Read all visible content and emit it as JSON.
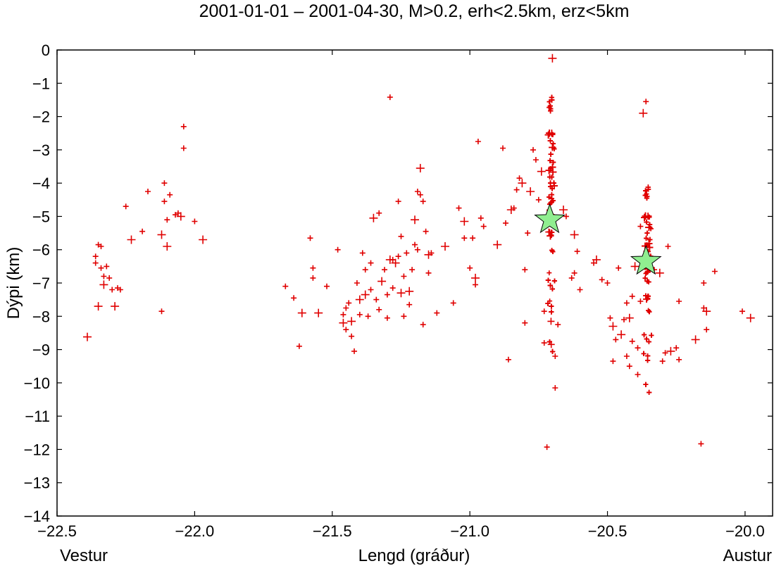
{
  "chart_data": {
    "type": "scatter",
    "title": "2001-01-01 – 2001-04-30, M>0.2, erh<2.5km, erz<5km",
    "xlabel": "Lengd (gráður)",
    "ylabel": "Dýpi (km)",
    "x_left_label": "Vestur",
    "x_right_label": "Austur",
    "xlim": [
      -22.5,
      -19.9
    ],
    "ylim": [
      -14,
      0
    ],
    "xticks": [
      -22.5,
      -22.0,
      -21.5,
      -21.0,
      -20.5,
      -20.0
    ],
    "xtick_labels": [
      "−22.5",
      "−22.0",
      "−21.5",
      "−21.0",
      "−20.5",
      "−20.0"
    ],
    "yticks": [
      0,
      -1,
      -2,
      -3,
      -4,
      -5,
      -6,
      -7,
      -8,
      -9,
      -10,
      -11,
      -12,
      -13,
      -14
    ],
    "ytick_labels": [
      "0",
      "−1",
      "−2",
      "−3",
      "−4",
      "−5",
      "−6",
      "−7",
      "−8",
      "−9",
      "−10",
      "−11",
      "−12",
      "−13",
      "−14"
    ],
    "grid": false,
    "colors": {
      "earthquake": "#e00000",
      "star": "#90ee90"
    },
    "series": [
      {
        "marker": "plus",
        "points": [
          [
            -22.39,
            -8.62
          ],
          [
            -22.36,
            -6.2
          ],
          [
            -22.36,
            -6.4
          ],
          [
            -22.35,
            -5.85
          ],
          [
            -22.35,
            -7.7
          ],
          [
            -22.34,
            -5.9
          ],
          [
            -22.34,
            -6.55
          ],
          [
            -22.33,
            -6.8
          ],
          [
            -22.33,
            -7.05
          ],
          [
            -22.32,
            -6.5
          ],
          [
            -22.31,
            -6.85
          ],
          [
            -22.3,
            -7.2
          ],
          [
            -22.29,
            -7.7
          ],
          [
            -22.28,
            -7.15
          ],
          [
            -22.27,
            -7.2
          ],
          [
            -22.25,
            -4.7
          ],
          [
            -22.23,
            -5.7
          ],
          [
            -22.19,
            -5.45
          ],
          [
            -22.17,
            -4.25
          ],
          [
            -22.12,
            -7.85
          ],
          [
            -22.12,
            -5.55
          ],
          [
            -22.11,
            -4.55
          ],
          [
            -22.11,
            -4.0
          ],
          [
            -22.1,
            -5.1
          ],
          [
            -22.1,
            -5.9
          ],
          [
            -22.09,
            -4.35
          ],
          [
            -22.07,
            -4.95
          ],
          [
            -22.06,
            -4.9
          ],
          [
            -22.05,
            -5.0
          ],
          [
            -22.04,
            -2.95
          ],
          [
            -22.04,
            -2.3
          ],
          [
            -22.0,
            -5.15
          ],
          [
            -21.97,
            -5.7
          ],
          [
            -21.67,
            -7.1
          ],
          [
            -21.64,
            -7.45
          ],
          [
            -21.62,
            -8.9
          ],
          [
            -21.61,
            -7.9
          ],
          [
            -21.58,
            -5.65
          ],
          [
            -21.57,
            -6.55
          ],
          [
            -21.57,
            -6.85
          ],
          [
            -21.55,
            -7.9
          ],
          [
            -21.52,
            -7.1
          ],
          [
            -21.48,
            -6.0
          ],
          [
            -21.46,
            -7.95
          ],
          [
            -21.46,
            -8.2
          ],
          [
            -21.45,
            -7.75
          ],
          [
            -21.45,
            -8.4
          ],
          [
            -21.44,
            -7.6
          ],
          [
            -21.43,
            -8.15
          ],
          [
            -21.43,
            -8.6
          ],
          [
            -21.42,
            -9.05
          ],
          [
            -21.41,
            -7.0
          ],
          [
            -21.4,
            -7.5
          ],
          [
            -21.4,
            -7.95
          ],
          [
            -21.39,
            -6.1
          ],
          [
            -21.38,
            -6.6
          ],
          [
            -21.38,
            -7.35
          ],
          [
            -21.37,
            -8.0
          ],
          [
            -21.36,
            -6.4
          ],
          [
            -21.36,
            -7.2
          ],
          [
            -21.35,
            -5.05
          ],
          [
            -21.34,
            -7.5
          ],
          [
            -21.33,
            -7.8
          ],
          [
            -21.33,
            -4.9
          ],
          [
            -21.32,
            -6.95
          ],
          [
            -21.31,
            -6.6
          ],
          [
            -21.3,
            -7.35
          ],
          [
            -21.3,
            -8.05
          ],
          [
            -21.29,
            -6.3
          ],
          [
            -21.29,
            -1.42
          ],
          [
            -21.28,
            -6.3
          ],
          [
            -21.28,
            -7.15
          ],
          [
            -21.27,
            -6.4
          ],
          [
            -21.26,
            -4.55
          ],
          [
            -21.26,
            -6.2
          ],
          [
            -21.25,
            -5.6
          ],
          [
            -21.25,
            -7.3
          ],
          [
            -21.24,
            -8.0
          ],
          [
            -21.24,
            -6.8
          ],
          [
            -21.23,
            -6.1
          ],
          [
            -21.22,
            -7.25
          ],
          [
            -21.22,
            -7.65
          ],
          [
            -21.21,
            -6.6
          ],
          [
            -21.2,
            -5.85
          ],
          [
            -21.2,
            -5.1
          ],
          [
            -21.19,
            -6.0
          ],
          [
            -21.19,
            -4.25
          ],
          [
            -21.18,
            -4.35
          ],
          [
            -21.18,
            -3.55
          ],
          [
            -21.17,
            -4.55
          ],
          [
            -21.17,
            -8.25
          ],
          [
            -21.16,
            -5.45
          ],
          [
            -21.15,
            -6.15
          ],
          [
            -21.15,
            -6.7
          ],
          [
            -21.14,
            -6.1
          ],
          [
            -21.12,
            -7.9
          ],
          [
            -21.09,
            -5.9
          ],
          [
            -21.06,
            -7.6
          ],
          [
            -21.04,
            -4.75
          ],
          [
            -21.02,
            -5.65
          ],
          [
            -21.02,
            -5.15
          ],
          [
            -21.0,
            -6.55
          ],
          [
            -20.99,
            -5.65
          ],
          [
            -20.98,
            -7.05
          ],
          [
            -20.98,
            -6.85
          ],
          [
            -20.97,
            -2.75
          ],
          [
            -20.96,
            -5.05
          ],
          [
            -20.95,
            -5.3
          ],
          [
            -20.9,
            -5.85
          ],
          [
            -20.88,
            -2.95
          ],
          [
            -20.87,
            -5.2
          ],
          [
            -20.86,
            -9.3
          ],
          [
            -20.85,
            -4.8
          ],
          [
            -20.84,
            -4.75
          ],
          [
            -20.83,
            -4.2
          ],
          [
            -20.82,
            -3.85
          ],
          [
            -20.81,
            -4.0
          ],
          [
            -20.8,
            -8.2
          ],
          [
            -20.8,
            -6.6
          ],
          [
            -20.79,
            -5.5
          ],
          [
            -20.78,
            -4.25
          ],
          [
            -20.77,
            -3.0
          ],
          [
            -20.76,
            -3.3
          ],
          [
            -20.75,
            -4.5
          ],
          [
            -20.74,
            -3.65
          ],
          [
            -20.73,
            -8.8
          ],
          [
            -20.73,
            -7.85
          ],
          [
            -20.72,
            -11.93
          ],
          [
            -20.7,
            -0.25
          ],
          [
            -20.69,
            -10.15
          ],
          [
            -20.69,
            -9.2
          ],
          [
            -20.68,
            -8.25
          ],
          [
            -20.66,
            -4.8
          ],
          [
            -20.65,
            -5.0
          ],
          [
            -20.63,
            -6.85
          ],
          [
            -20.62,
            -6.7
          ],
          [
            -20.62,
            -5.55
          ],
          [
            -20.61,
            -6.05
          ],
          [
            -20.6,
            -7.2
          ],
          [
            -20.55,
            -6.4
          ],
          [
            -20.54,
            -6.3
          ],
          [
            -20.52,
            -6.9
          ],
          [
            -20.5,
            -7.0
          ],
          [
            -20.49,
            -8.05
          ],
          [
            -20.48,
            -8.3
          ],
          [
            -20.48,
            -9.35
          ],
          [
            -20.47,
            -8.7
          ],
          [
            -20.46,
            -6.55
          ],
          [
            -20.45,
            -8.55
          ],
          [
            -20.44,
            -8.1
          ],
          [
            -20.43,
            -7.6
          ],
          [
            -20.43,
            -9.2
          ],
          [
            -20.42,
            -8.05
          ],
          [
            -20.42,
            -9.5
          ],
          [
            -20.41,
            -7.4
          ],
          [
            -20.41,
            -8.75
          ],
          [
            -20.4,
            -6.5
          ],
          [
            -20.39,
            -8.95
          ],
          [
            -20.39,
            -9.75
          ],
          [
            -20.38,
            -7.55
          ],
          [
            -20.37,
            -1.9
          ],
          [
            -20.36,
            -1.55
          ],
          [
            -20.38,
            -5.3
          ],
          [
            -20.33,
            -6.6
          ],
          [
            -20.31,
            -6.7
          ],
          [
            -20.3,
            -9.35
          ],
          [
            -20.29,
            -9.1
          ],
          [
            -20.28,
            -5.9
          ],
          [
            -20.27,
            -9.05
          ],
          [
            -20.25,
            -8.95
          ],
          [
            -20.24,
            -7.55
          ],
          [
            -20.24,
            -9.3
          ],
          [
            -20.18,
            -8.7
          ],
          [
            -20.16,
            -11.83
          ],
          [
            -20.15,
            -7.0
          ],
          [
            -20.15,
            -7.75
          ],
          [
            -20.14,
            -7.85
          ],
          [
            -20.14,
            -8.4
          ],
          [
            -20.11,
            -6.65
          ],
          [
            -20.01,
            -7.85
          ],
          [
            -19.98,
            -8.05
          ]
        ],
        "clusters": [
          {
            "x": -20.705,
            "x_spread": 0.014,
            "y_from": -9.2,
            "y_to": -1.4,
            "count": 330
          },
          {
            "x": -20.355,
            "x_spread": 0.016,
            "y_from": -10.4,
            "y_to": -4.1,
            "count": 230
          }
        ]
      },
      {
        "marker": "star",
        "points": [
          [
            -20.71,
            -5.1
          ],
          [
            -20.36,
            -6.35
          ]
        ]
      }
    ]
  }
}
